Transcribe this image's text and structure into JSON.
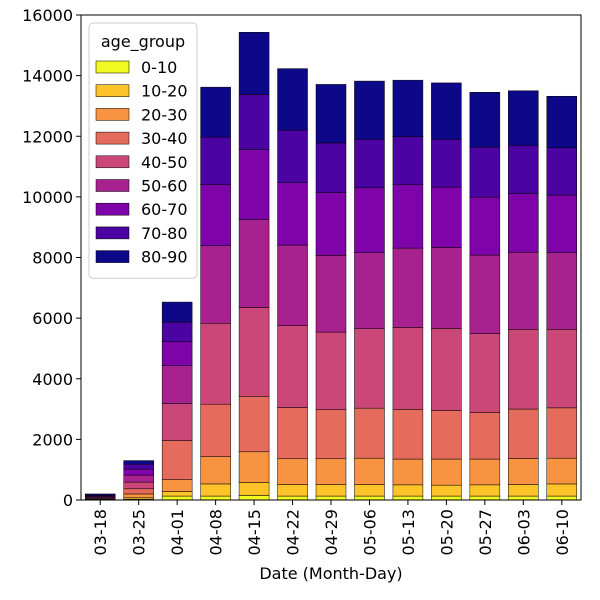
{
  "chart_data": {
    "type": "bar",
    "stacked": true,
    "xlabel": "Date (Month-Day)",
    "ylabel": "",
    "ylim": [
      0,
      16000
    ],
    "yticks": [
      0,
      2000,
      4000,
      6000,
      8000,
      10000,
      12000,
      14000,
      16000
    ],
    "grid": false,
    "legend": {
      "title": "age_group",
      "placement": "top-left"
    },
    "categories": [
      "03-18",
      "03-25",
      "04-01",
      "04-08",
      "04-15",
      "04-22",
      "04-29",
      "05-06",
      "05-13",
      "05-20",
      "05-27",
      "06-03",
      "06-10"
    ],
    "series": [
      {
        "name": "0-10",
        "color": "#f0f921",
        "values": [
          5,
          30,
          130,
          130,
          150,
          130,
          130,
          130,
          130,
          130,
          130,
          130,
          130
        ]
      },
      {
        "name": "10-20",
        "color": "#fdc328",
        "values": [
          10,
          60,
          150,
          400,
          430,
          380,
          380,
          380,
          370,
          360,
          370,
          380,
          400
        ]
      },
      {
        "name": "20-30",
        "color": "#f89441",
        "values": [
          15,
          110,
          390,
          900,
          1010,
          850,
          850,
          870,
          850,
          860,
          850,
          860,
          850
        ]
      },
      {
        "name": "30-40",
        "color": "#e56b5d",
        "values": [
          20,
          170,
          1290,
          1730,
          1830,
          1690,
          1620,
          1650,
          1640,
          1600,
          1540,
          1630,
          1660
        ]
      },
      {
        "name": "40-50",
        "color": "#cb4778",
        "values": [
          25,
          220,
          1220,
          2670,
          2930,
          2700,
          2560,
          2620,
          2700,
          2710,
          2600,
          2630,
          2590
        ]
      },
      {
        "name": "50-60",
        "color": "#a8228f",
        "values": [
          30,
          230,
          1250,
          2560,
          2900,
          2660,
          2530,
          2510,
          2620,
          2670,
          2590,
          2540,
          2530
        ]
      },
      {
        "name": "60-70",
        "color": "#7e03a8",
        "values": [
          30,
          200,
          790,
          2020,
          2310,
          2060,
          2070,
          2140,
          2090,
          1990,
          1910,
          1940,
          1900
        ]
      },
      {
        "name": "70-80",
        "color": "#4b03a1",
        "values": [
          25,
          160,
          650,
          1560,
          1820,
          1730,
          1640,
          1600,
          1590,
          1580,
          1650,
          1590,
          1560
        ]
      },
      {
        "name": "80-90",
        "color": "#0d0887",
        "values": [
          40,
          120,
          660,
          1650,
          2050,
          2030,
          1930,
          1920,
          1860,
          1860,
          1810,
          1800,
          1700
        ]
      }
    ]
  }
}
